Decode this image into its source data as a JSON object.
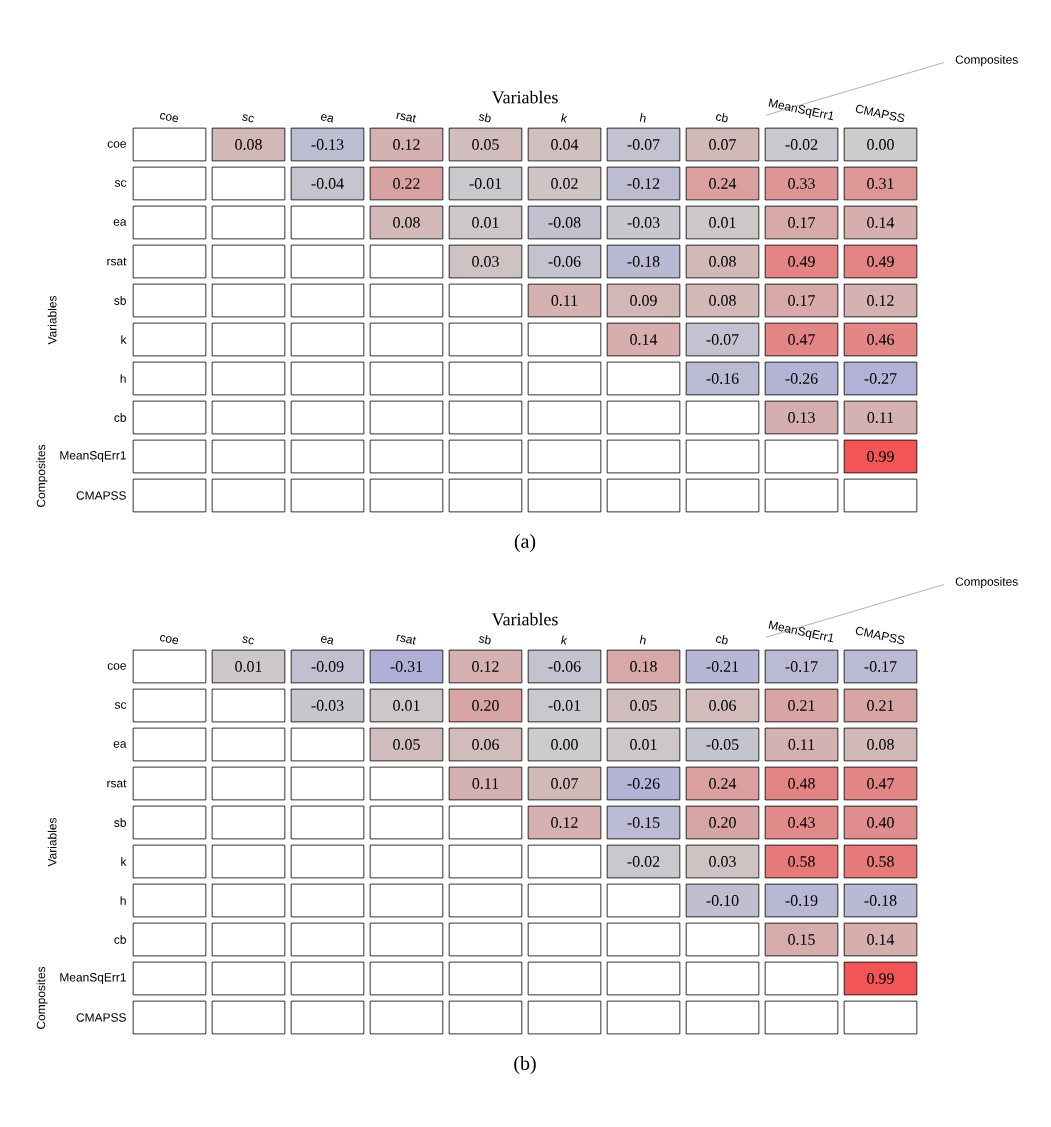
{
  "chart_data": [
    {
      "type": "heatmap",
      "title": "Variables",
      "ylabel": "Variables",
      "categories": [
        "coe",
        "sc",
        "ea",
        "rsat",
        "sb",
        "k",
        "h",
        "cb",
        "MeanSqErr1",
        "CMAPSS"
      ],
      "y_categories": [
        "coe",
        "sc",
        "ea",
        "rsat",
        "sb",
        "k",
        "h",
        "cb",
        "MeanSqErr1",
        "CMAPSS"
      ],
      "cells": [
        [
          null,
          0.08,
          -0.13,
          0.12,
          0.05,
          0.04,
          -0.07,
          0.07,
          -0.02,
          0.0
        ],
        [
          null,
          null,
          -0.04,
          0.22,
          -0.01,
          0.02,
          -0.12,
          0.24,
          0.33,
          0.31
        ],
        [
          null,
          null,
          null,
          0.08,
          0.01,
          -0.08,
          -0.03,
          0.01,
          0.17,
          0.14
        ],
        [
          null,
          null,
          null,
          null,
          0.03,
          -0.06,
          -0.18,
          0.08,
          0.49,
          0.49
        ],
        [
          null,
          null,
          null,
          null,
          null,
          0.11,
          0.09,
          0.08,
          0.17,
          0.12
        ],
        [
          null,
          null,
          null,
          null,
          null,
          null,
          0.14,
          -0.07,
          0.47,
          0.46
        ],
        [
          null,
          null,
          null,
          null,
          null,
          null,
          null,
          -0.16,
          -0.26,
          -0.27
        ],
        [
          null,
          null,
          null,
          null,
          null,
          null,
          null,
          null,
          0.13,
          0.11
        ],
        [
          null,
          null,
          null,
          null,
          null,
          null,
          null,
          null,
          null,
          0.99
        ],
        [
          null,
          null,
          null,
          null,
          null,
          null,
          null,
          null,
          null,
          null
        ]
      ],
      "cell_labels": [
        [
          null,
          "0.08",
          "-0.13",
          "0.12",
          "0.05",
          "0.04",
          "-0.07",
          "0.07",
          "-0.02",
          "0.00"
        ],
        [
          null,
          null,
          "-0.04",
          "0.22",
          "-0.01",
          "0.02",
          "-0.12",
          "0.24",
          "0.33",
          "0.31"
        ],
        [
          null,
          null,
          null,
          "0.08",
          "0.01",
          "-0.08",
          "-0.03",
          "0.01",
          "0.17",
          "0.14"
        ],
        [
          null,
          null,
          null,
          null,
          "0.03",
          "-0.06",
          "-0.18",
          "0.08",
          "0.49",
          "0.49"
        ],
        [
          null,
          null,
          null,
          null,
          null,
          "0.11",
          "0.09",
          "0.08",
          "0.17",
          "0.12"
        ],
        [
          null,
          null,
          null,
          null,
          null,
          null,
          "0.14",
          "-0.07",
          "0.47",
          "0.46"
        ],
        [
          null,
          null,
          null,
          null,
          null,
          null,
          null,
          "-0.16",
          "-0.26",
          "-0.27"
        ],
        [
          null,
          null,
          null,
          null,
          null,
          null,
          null,
          null,
          "0.13",
          "0.11"
        ],
        [
          null,
          null,
          null,
          null,
          null,
          null,
          null,
          null,
          null,
          "0.99"
        ],
        [
          null,
          null,
          null,
          null,
          null,
          null,
          null,
          null,
          null,
          null
        ]
      ],
      "annotations": [
        "Composites",
        "Composites",
        "(a)"
      ]
    },
    {
      "type": "heatmap",
      "title": "Variables",
      "ylabel": "Variables",
      "categories": [
        "coe",
        "sc",
        "ea",
        "rsat",
        "sb",
        "k",
        "h",
        "cb",
        "MeanSqErr1",
        "CMAPSS"
      ],
      "y_categories": [
        "coe",
        "sc",
        "ea",
        "rsat",
        "sb",
        "k",
        "h",
        "cb",
        "MeanSqErr1",
        "CMAPSS"
      ],
      "cells": [
        [
          null,
          0.01,
          -0.09,
          -0.31,
          0.12,
          -0.06,
          0.18,
          -0.21,
          -0.17,
          -0.17
        ],
        [
          null,
          null,
          -0.03,
          0.01,
          0.2,
          -0.01,
          0.05,
          0.06,
          0.21,
          0.21
        ],
        [
          null,
          null,
          null,
          0.05,
          0.06,
          0.0,
          0.01,
          -0.05,
          0.11,
          0.08
        ],
        [
          null,
          null,
          null,
          null,
          0.11,
          0.07,
          -0.26,
          0.24,
          0.48,
          0.47
        ],
        [
          null,
          null,
          null,
          null,
          null,
          0.12,
          -0.15,
          0.2,
          0.43,
          0.4
        ],
        [
          null,
          null,
          null,
          null,
          null,
          null,
          -0.02,
          0.03,
          0.58,
          0.58
        ],
        [
          null,
          null,
          null,
          null,
          null,
          null,
          null,
          -0.1,
          -0.19,
          -0.18
        ],
        [
          null,
          null,
          null,
          null,
          null,
          null,
          null,
          null,
          0.15,
          0.14
        ],
        [
          null,
          null,
          null,
          null,
          null,
          null,
          null,
          null,
          null,
          0.99
        ],
        [
          null,
          null,
          null,
          null,
          null,
          null,
          null,
          null,
          null,
          null
        ]
      ],
      "cell_labels": [
        [
          null,
          "0.01",
          "-0.09",
          "-0.31",
          "0.12",
          "-0.06",
          "0.18",
          "-0.21",
          "-0.17",
          "-0.17"
        ],
        [
          null,
          null,
          "-0.03",
          "0.01",
          "0.20",
          "-0.01",
          "0.05",
          "0.06",
          "0.21",
          "0.21"
        ],
        [
          null,
          null,
          null,
          "0.05",
          "0.06",
          "0.00",
          "0.01",
          "-0.05",
          "0.11",
          "0.08"
        ],
        [
          null,
          null,
          null,
          null,
          "0.11",
          "0.07",
          "-0.26",
          "0.24",
          "0.48",
          "0.47"
        ],
        [
          null,
          null,
          null,
          null,
          null,
          "0.12",
          "-0.15",
          "0.20",
          "0.43",
          "0.40"
        ],
        [
          null,
          null,
          null,
          null,
          null,
          null,
          "-0.02",
          "0.03",
          "0.58",
          "0.58"
        ],
        [
          null,
          null,
          null,
          null,
          null,
          null,
          null,
          "-0.10",
          "-0.19",
          "-0.18"
        ],
        [
          null,
          null,
          null,
          null,
          null,
          null,
          null,
          null,
          "0.15",
          "0.14"
        ],
        [
          null,
          null,
          null,
          null,
          null,
          null,
          null,
          null,
          null,
          "0.99"
        ],
        [
          null,
          null,
          null,
          null,
          null,
          null,
          null,
          null,
          null,
          null
        ]
      ],
      "annotations": [
        "Composites",
        "Composites",
        "(b)"
      ]
    }
  ]
}
